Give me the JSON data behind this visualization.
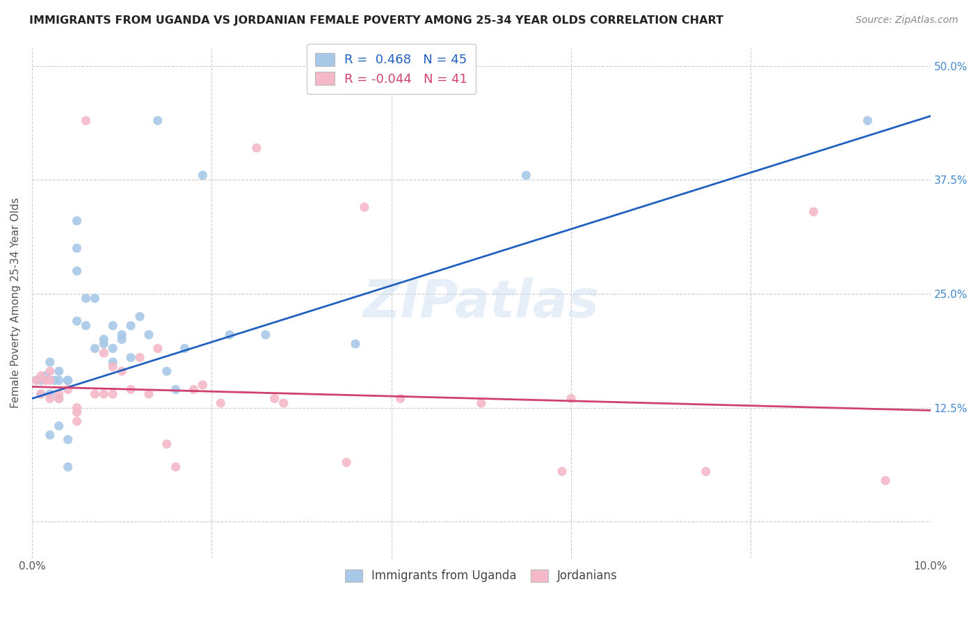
{
  "title": "IMMIGRANTS FROM UGANDA VS JORDANIAN FEMALE POVERTY AMONG 25-34 YEAR OLDS CORRELATION CHART",
  "source": "Source: ZipAtlas.com",
  "ylabel": "Female Poverty Among 25-34 Year Olds",
  "r1": 0.468,
  "n1": 45,
  "r2": -0.044,
  "n2": 41,
  "blue_color": "#a8c8e8",
  "pink_color": "#f4b8c8",
  "line_blue": "#2060c0",
  "line_pink": "#d04070",
  "legend_blue_text_color": "#2060c0",
  "legend_pink_text_color": "#d04070",
  "yaxis_color": "#4488cc",
  "watermark": "ZIPatlas",
  "xlim": [
    0.0,
    0.1
  ],
  "ylim": [
    -0.04,
    0.52
  ],
  "x_tick_positions": [
    0.0,
    0.02,
    0.04,
    0.06,
    0.08,
    0.1
  ],
  "x_tick_labels": [
    "0.0%",
    "",
    "",
    "",
    "",
    "10.0%"
  ],
  "y_tick_positions": [
    0.0,
    0.125,
    0.25,
    0.375,
    0.5
  ],
  "y_tick_labels": [
    "",
    "12.5%",
    "25.0%",
    "37.5%",
    "50.0%"
  ],
  "blue_line_x0": 0.0,
  "blue_line_y0": 0.135,
  "blue_line_x1": 0.1,
  "blue_line_y1": 0.445,
  "pink_line_x0": 0.0,
  "pink_line_y0": 0.148,
  "pink_line_x1": 0.1,
  "pink_line_y1": 0.122,
  "blue_scatter_x": [
    0.0005,
    0.001,
    0.001,
    0.0015,
    0.002,
    0.002,
    0.002,
    0.0025,
    0.003,
    0.003,
    0.003,
    0.003,
    0.004,
    0.004,
    0.004,
    0.004,
    0.005,
    0.005,
    0.005,
    0.005,
    0.006,
    0.006,
    0.007,
    0.007,
    0.008,
    0.008,
    0.009,
    0.009,
    0.009,
    0.01,
    0.01,
    0.011,
    0.011,
    0.012,
    0.013,
    0.014,
    0.015,
    0.016,
    0.017,
    0.019,
    0.022,
    0.026,
    0.036,
    0.055,
    0.093
  ],
  "blue_scatter_y": [
    0.155,
    0.155,
    0.14,
    0.16,
    0.175,
    0.14,
    0.095,
    0.155,
    0.165,
    0.155,
    0.135,
    0.105,
    0.155,
    0.155,
    0.09,
    0.06,
    0.33,
    0.3,
    0.275,
    0.22,
    0.245,
    0.215,
    0.245,
    0.19,
    0.2,
    0.195,
    0.175,
    0.19,
    0.215,
    0.2,
    0.205,
    0.215,
    0.18,
    0.225,
    0.205,
    0.44,
    0.165,
    0.145,
    0.19,
    0.38,
    0.205,
    0.205,
    0.195,
    0.38,
    0.44
  ],
  "pink_scatter_x": [
    0.0005,
    0.001,
    0.001,
    0.0015,
    0.002,
    0.002,
    0.002,
    0.003,
    0.003,
    0.004,
    0.005,
    0.005,
    0.005,
    0.006,
    0.007,
    0.008,
    0.008,
    0.009,
    0.009,
    0.01,
    0.011,
    0.012,
    0.013,
    0.014,
    0.015,
    0.016,
    0.018,
    0.019,
    0.021,
    0.025,
    0.027,
    0.028,
    0.035,
    0.037,
    0.041,
    0.05,
    0.059,
    0.06,
    0.075,
    0.087,
    0.095
  ],
  "pink_scatter_y": [
    0.155,
    0.14,
    0.16,
    0.155,
    0.135,
    0.155,
    0.165,
    0.135,
    0.14,
    0.145,
    0.12,
    0.11,
    0.125,
    0.44,
    0.14,
    0.185,
    0.14,
    0.17,
    0.14,
    0.165,
    0.145,
    0.18,
    0.14,
    0.19,
    0.085,
    0.06,
    0.145,
    0.15,
    0.13,
    0.41,
    0.135,
    0.13,
    0.065,
    0.345,
    0.135,
    0.13,
    0.055,
    0.135,
    0.055,
    0.34,
    0.045
  ]
}
